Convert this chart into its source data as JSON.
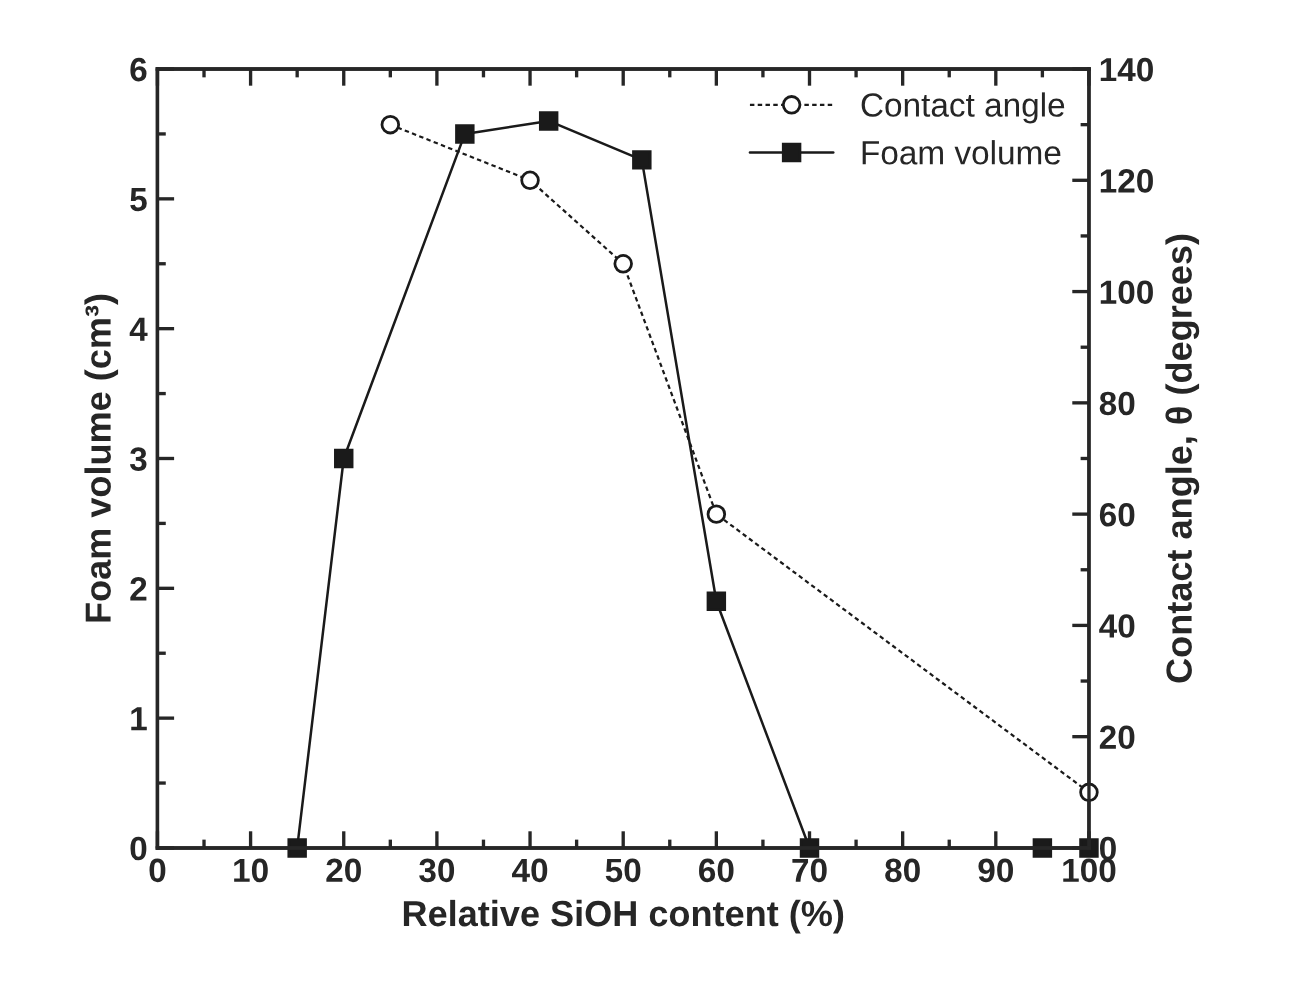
{
  "chart_data": {
    "type": "line",
    "xlabel": "Relative SiOH content (%)",
    "ylabel": "Foam volume (cm³)",
    "y2label": "Contact angle, θ (degrees)",
    "xlim": [
      0,
      100
    ],
    "xticks": [
      0,
      10,
      20,
      30,
      40,
      50,
      60,
      70,
      80,
      90,
      100
    ],
    "ylim": [
      0,
      6
    ],
    "yticks": [
      0,
      1,
      2,
      3,
      4,
      5,
      6
    ],
    "y2lim": [
      0,
      140
    ],
    "y2ticks": [
      0,
      20,
      40,
      60,
      80,
      100,
      120,
      140
    ],
    "legend": "top right",
    "grid": false,
    "series": [
      {
        "name": "Contact angle",
        "color": "#1a1a1a",
        "axis": "y2",
        "marker": "circle",
        "line_style": "dotted",
        "x": [
          25,
          40,
          50,
          60,
          100
        ],
        "values": [
          130,
          120,
          105,
          60,
          10
        ]
      },
      {
        "name": "Foam volume",
        "color": "#1a1a1a",
        "marker": "square",
        "line_style": "solid",
        "x": [
          15,
          20,
          33,
          42,
          52,
          60,
          70,
          95,
          100
        ],
        "values": [
          0,
          3.0,
          5.5,
          5.6,
          5.3,
          1.9,
          0,
          0,
          0
        ]
      }
    ]
  }
}
